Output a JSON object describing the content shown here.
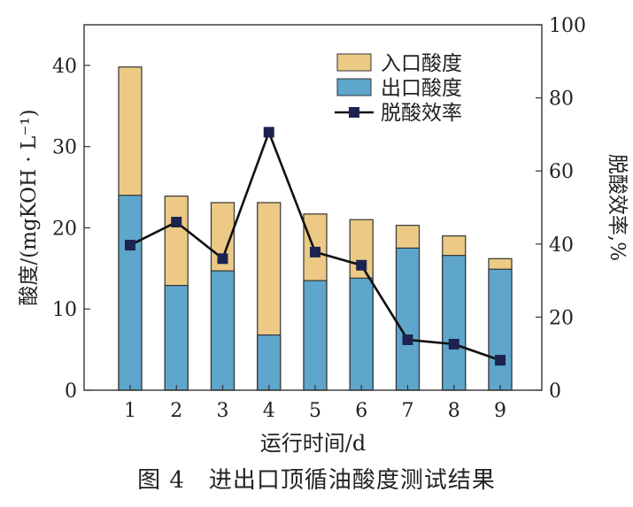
{
  "chart_data": {
    "type": "bar",
    "categories": [
      "1",
      "2",
      "3",
      "4",
      "5",
      "6",
      "7",
      "8",
      "9"
    ],
    "series": [
      {
        "name": "入口酸度",
        "kind": "bar",
        "axis": "left",
        "values": [
          39.8,
          23.9,
          23.1,
          23.1,
          21.7,
          21.0,
          20.3,
          19.0,
          16.2
        ],
        "color": "#ecca86"
      },
      {
        "name": "出口酸度",
        "kind": "bar",
        "axis": "left",
        "values": [
          24.0,
          12.9,
          14.7,
          6.8,
          13.5,
          13.8,
          17.5,
          16.6,
          14.9
        ],
        "color": "#5ea6cb"
      },
      {
        "name": "脱酸效率",
        "kind": "line",
        "axis": "right",
        "values": [
          39.7,
          46.0,
          36.0,
          70.6,
          37.8,
          34.2,
          13.8,
          12.6,
          8.2
        ],
        "color": "#1c2350"
      }
    ],
    "xlabel": "运行时间/d",
    "ylabel": "酸度/(mgKOH · L⁻¹)",
    "y2label": "脱酸效率,%",
    "ylim": [
      0,
      45
    ],
    "y2lim": [
      0,
      100
    ],
    "yticks": [
      0,
      10,
      20,
      30,
      40
    ],
    "y2ticks": [
      0,
      20,
      40,
      60,
      80,
      100
    ],
    "legend_position": "top-right",
    "grid": false
  },
  "caption": "图 4　进出口顶循油酸度测试结果"
}
